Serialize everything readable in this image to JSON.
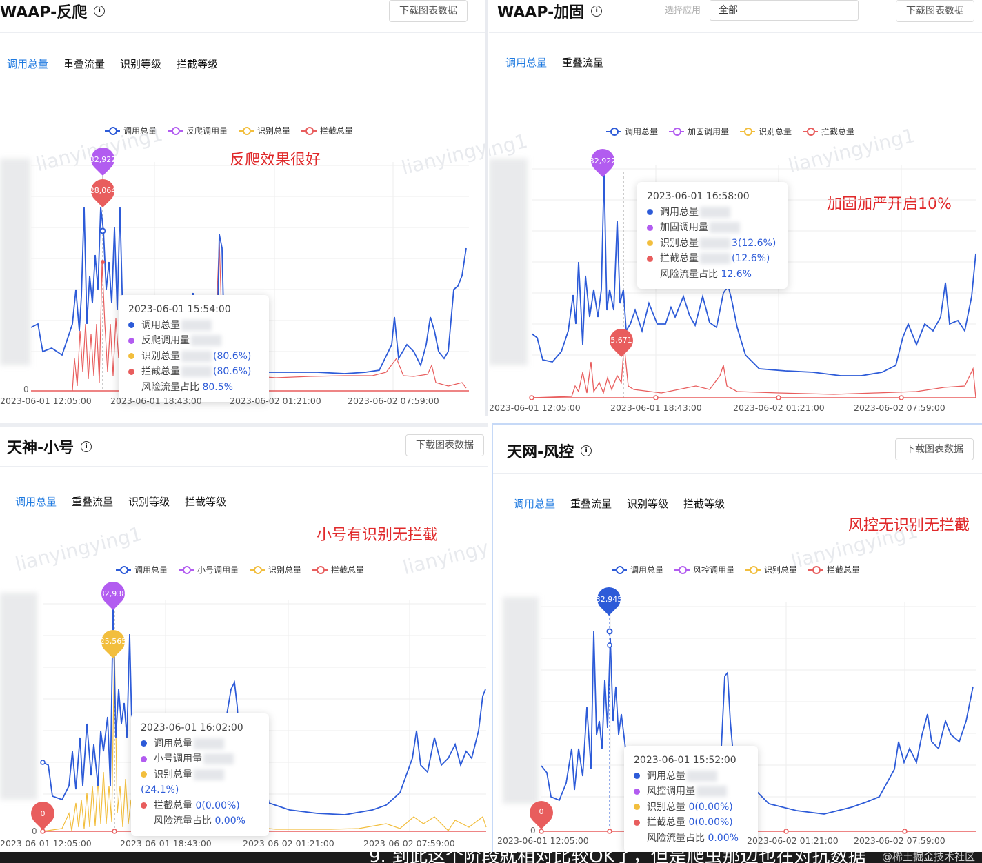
{
  "legend_colors": {
    "total": "#2d5bd8",
    "subset": "#b25cf0",
    "recognized": "#f2be3d",
    "blocked": "#e85d5d"
  },
  "common": {
    "download_label": "下载图表数据",
    "tab_total": "调用总量",
    "tab_overlap": "重叠流量",
    "tab_recog": "识别等级",
    "tab_block": "拦截等级",
    "legend_total": "调用总量",
    "legend_recog": "识别总量",
    "legend_block": "拦截总量",
    "watermark": "lianyingying1"
  },
  "panels": {
    "tl": {
      "title": "WAAP-反爬",
      "legend_subset": "反爬调用量",
      "annotation": "反爬效果很好",
      "zero": "0",
      "x_ticks": [
        "2023-06-01 12:05:00",
        "2023-06-01 18:43:00",
        "2023-06-02 01:21:00",
        "2023-06-02 07:59:00"
      ],
      "pin1": "32,922",
      "pin2": "28,064",
      "tooltip": {
        "time": "2023-06-01 15:54:00",
        "r1": "调用总量",
        "r2": "反爬调用量",
        "r3": "识别总量",
        "r3v": "(80.6%)",
        "r4": "拦截总量",
        "r4v": "(80.6%)",
        "r5": "风险流量占比",
        "r5v": "80.5%"
      }
    },
    "tr": {
      "title": "WAAP-加固",
      "legend_subset": "加固调用量",
      "annotation": "加固加严开启10%",
      "select_label": "选择应用",
      "select_value": "全部",
      "x_ticks": [
        "2023-06-01 12:05:00",
        "2023-06-01 18:43:00",
        "2023-06-02 01:21:00",
        "2023-06-02 07:59:00"
      ],
      "pin1": "32,922",
      "pin2": "5,671",
      "tooltip": {
        "time": "2023-06-01 16:58:00",
        "r1": "调用总量",
        "r2": "加固调用量",
        "r3": "识别总量",
        "r3v": "3(12.6%)",
        "r4": "拦截总量",
        "r4v": "(12.6%)",
        "r5": "风险流量占比",
        "r5v": "12.6%"
      }
    },
    "bl": {
      "title": "天神-小号",
      "legend_subset": "小号调用量",
      "annotation": "小号有识别无拦截",
      "zero": "0",
      "x_ticks": [
        "2023-06-01 12:05:00",
        "2023-06-01 18:43:00",
        "2023-06-02 01:21:00",
        "2023-06-02 07:59:00"
      ],
      "pin1": "32,938",
      "pin2": "25,565",
      "pin3": "0",
      "tooltip": {
        "time": "2023-06-01 16:02:00",
        "r1": "调用总量",
        "r2": "小号调用量",
        "r3": "识别总量",
        "r3v": "(24.1%)",
        "r4": "拦截总量",
        "r4v": "0(0.00%)",
        "r5": "风险流量占比",
        "r5v": "0.00%"
      }
    },
    "br": {
      "title": "天网-风控",
      "legend_subset": "风控调用量",
      "annotation": "风控无识别无拦截",
      "zero": "0",
      "x_ticks": [
        "2023-06-01 12:05:00",
        "2023-06-02 01:21:00",
        "2023-06-02 07:59:00"
      ],
      "pin1": "32,945",
      "pin2": "0",
      "tooltip": {
        "time": "2023-06-01 15:52:00",
        "r1": "调用总量",
        "r2": "风控调用量",
        "r3": "识别总量",
        "r3v": "0(0.00%)",
        "r4": "拦截总量",
        "r4v": "0(0.00%)",
        "r5": "风险流量占比",
        "r5v": "0.00%"
      }
    }
  },
  "footer": {
    "text": "9. 到此这个阶段就相对比较OK了，但是爬虫那边也在对抗数据",
    "watermark": "@稀土掘金技术社区"
  }
}
